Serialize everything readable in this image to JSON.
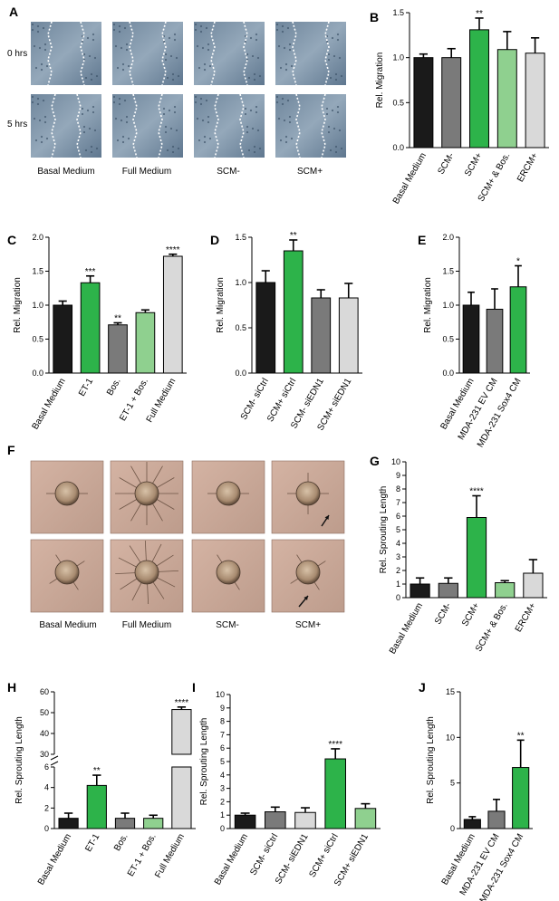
{
  "panels": {
    "A": {
      "letter": "A",
      "row_labels": [
        "0 hrs",
        "5 hrs"
      ],
      "conditions": [
        "Basal Medium",
        "Full Medium",
        "SCM-",
        "SCM+"
      ]
    },
    "F": {
      "letter": "F",
      "conditions": [
        "Basal Medium",
        "Full Medium",
        "SCM-",
        "SCM+"
      ]
    }
  },
  "colors": {
    "black": "#1a1a1a",
    "dark_gray": "#7a7a7a",
    "green": "#2db34a",
    "light_green": "#8fd08f",
    "light_gray": "#d9d9d9",
    "photo_scratch": "#7d93a8",
    "photo_spheroid": "#c4a594"
  },
  "chart_data": [
    {
      "id": "B",
      "letter": "B",
      "type": "bar",
      "ylabel": "Rel. Migration",
      "ylim": [
        0,
        1.5
      ],
      "yticks": [
        "0.0",
        "0.5",
        "1.0",
        "1.5"
      ],
      "ytick_values": [
        0,
        0.5,
        1.0,
        1.5
      ],
      "categories": [
        "Basal Medium",
        "SCM-",
        "SCM+",
        "SCM+ & Bos.",
        "ERCM+"
      ],
      "values": [
        1.0,
        1.0,
        1.31,
        1.09,
        1.05
      ],
      "errors": [
        0.04,
        0.1,
        0.13,
        0.2,
        0.17
      ],
      "significance": [
        "",
        "",
        "**",
        "",
        ""
      ],
      "colors": [
        "black",
        "dark_gray",
        "green",
        "light_green",
        "light_gray"
      ]
    },
    {
      "id": "C",
      "letter": "C",
      "type": "bar",
      "ylabel": "Rel. Migration",
      "ylim": [
        0,
        2.0
      ],
      "yticks": [
        "0.0",
        "0.5",
        "1.0",
        "1.5",
        "2.0"
      ],
      "ytick_values": [
        0,
        0.5,
        1.0,
        1.5,
        2.0
      ],
      "categories": [
        "Basal Medium",
        "ET-1",
        "Bos.",
        "ET-1 + Bos.",
        "Full Medium"
      ],
      "values": [
        1.0,
        1.33,
        0.71,
        0.89,
        1.72
      ],
      "errors": [
        0.06,
        0.1,
        0.03,
        0.04,
        0.03
      ],
      "significance": [
        "",
        "***",
        "**",
        "",
        "****"
      ],
      "colors": [
        "black",
        "green",
        "dark_gray",
        "light_green",
        "light_gray"
      ]
    },
    {
      "id": "D",
      "letter": "D",
      "type": "bar",
      "ylabel": "Rel. Migration",
      "ylim": [
        0,
        1.5
      ],
      "yticks": [
        "0.0",
        "0.5",
        "1.0",
        "1.5"
      ],
      "ytick_values": [
        0,
        0.5,
        1.0,
        1.5
      ],
      "categories": [
        "SCM- siCtrl",
        "SCM+ siCtrl",
        "SCM- siEDN1",
        "SCM+ siEDN1"
      ],
      "values": [
        1.0,
        1.35,
        0.83,
        0.83
      ],
      "errors": [
        0.13,
        0.12,
        0.09,
        0.16
      ],
      "significance": [
        "",
        "**",
        "",
        ""
      ],
      "colors": [
        "black",
        "green",
        "dark_gray",
        "light_gray"
      ]
    },
    {
      "id": "E",
      "letter": "E",
      "type": "bar",
      "ylabel": "Rel. Migration",
      "ylim": [
        0,
        2.0
      ],
      "yticks": [
        "0.0",
        "0.5",
        "1.0",
        "1.5",
        "2.0"
      ],
      "ytick_values": [
        0,
        0.5,
        1.0,
        1.5,
        2.0
      ],
      "categories": [
        "Basal Medium",
        "MDA-231 EV CM",
        "MDA-231 Sox4 CM"
      ],
      "values": [
        1.0,
        0.94,
        1.27
      ],
      "errors": [
        0.19,
        0.3,
        0.31
      ],
      "significance": [
        "",
        "",
        "*"
      ],
      "colors": [
        "black",
        "dark_gray",
        "green"
      ]
    },
    {
      "id": "G",
      "letter": "G",
      "type": "bar",
      "ylabel": "Rel. Sprouting Length",
      "ylim": [
        0,
        10
      ],
      "yticks": [
        "0",
        "1",
        "2",
        "3",
        "4",
        "5",
        "6",
        "7",
        "8",
        "9",
        "10"
      ],
      "ytick_values": [
        0,
        1,
        2,
        3,
        4,
        5,
        6,
        7,
        8,
        9,
        10
      ],
      "categories": [
        "Basal Medium",
        "SCM-",
        "SCM+",
        "SCM+ & Bos.",
        "ERCM+"
      ],
      "values": [
        1.0,
        1.05,
        5.9,
        1.1,
        1.8
      ],
      "errors": [
        0.45,
        0.4,
        1.6,
        0.15,
        1.0
      ],
      "significance": [
        "",
        "",
        "****",
        "",
        ""
      ],
      "colors": [
        "black",
        "dark_gray",
        "green",
        "light_green",
        "light_gray"
      ]
    },
    {
      "id": "H",
      "letter": "H",
      "type": "bar",
      "ylabel": "Rel. Sprouting Length",
      "broken_axis": true,
      "ylim_low": [
        0,
        6
      ],
      "yticks_low": [
        "0",
        "2",
        "4",
        "6"
      ],
      "ytick_values_low": [
        0,
        2,
        4,
        6
      ],
      "ylim_high": [
        30,
        60
      ],
      "yticks_high": [
        "30",
        "40",
        "50",
        "60"
      ],
      "ytick_values_high": [
        30,
        40,
        50,
        60
      ],
      "categories": [
        "Basal Medium",
        "ET-1",
        "Bos.",
        "ET-1 + Bos.",
        "Full Medium"
      ],
      "values": [
        1.0,
        4.2,
        1.0,
        1.0,
        51.5
      ],
      "errors": [
        0.5,
        1.0,
        0.5,
        0.3,
        1.2
      ],
      "significance": [
        "",
        "**",
        "",
        "",
        "****"
      ],
      "colors": [
        "black",
        "green",
        "dark_gray",
        "light_green",
        "light_gray"
      ]
    },
    {
      "id": "I",
      "letter": "I",
      "type": "bar",
      "ylabel": "Rel. Sprouting Length",
      "ylim": [
        0,
        10
      ],
      "yticks": [
        "0",
        "1",
        "2",
        "3",
        "4",
        "5",
        "6",
        "7",
        "8",
        "9",
        "10"
      ],
      "ytick_values": [
        0,
        1,
        2,
        3,
        4,
        5,
        6,
        7,
        8,
        9,
        10
      ],
      "categories": [
        "Basal Medium",
        "SCM- siCtrl",
        "SCM- siEDN1",
        "SCM+ siCtrl",
        "SCM+ siEDN1"
      ],
      "values": [
        1.0,
        1.25,
        1.2,
        5.2,
        1.5
      ],
      "errors": [
        0.15,
        0.35,
        0.35,
        0.75,
        0.35
      ],
      "significance": [
        "",
        "",
        "",
        "****",
        ""
      ],
      "colors": [
        "black",
        "dark_gray",
        "light_gray",
        "green",
        "light_green"
      ]
    },
    {
      "id": "J",
      "letter": "J",
      "type": "bar",
      "ylabel": "Rel. Sprouting Length",
      "ylim": [
        0,
        15
      ],
      "yticks": [
        "0",
        "5",
        "10",
        "15"
      ],
      "ytick_values": [
        0,
        5,
        10,
        15
      ],
      "categories": [
        "Basal Medium",
        "MDA-231 EV CM",
        "MDA-231 Sox4 CM"
      ],
      "values": [
        1.0,
        1.9,
        6.7
      ],
      "errors": [
        0.3,
        1.3,
        3.0
      ],
      "significance": [
        "",
        "",
        "**"
      ],
      "colors": [
        "black",
        "dark_gray",
        "green"
      ]
    }
  ]
}
